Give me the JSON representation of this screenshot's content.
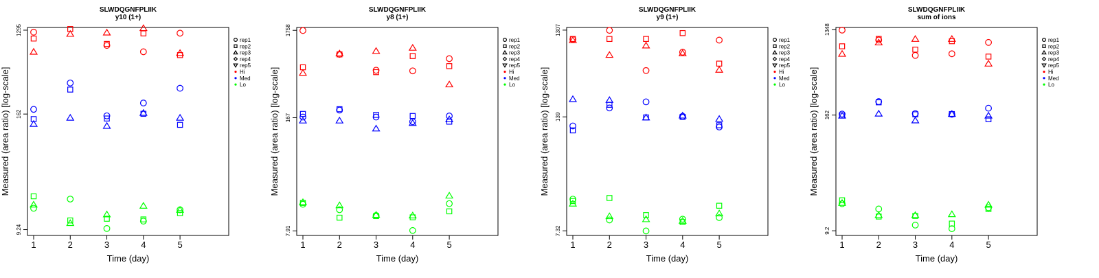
{
  "chart_data": [
    {
      "type": "scatter",
      "title": "SLWDQGNFPLIIK",
      "subtitle": "y10 (1+)",
      "xlabel": "Time (day)",
      "ylabel": "Measured (area ratio) [log-scale]",
      "x_ticks": [
        "1",
        "2",
        "3",
        "4",
        "5"
      ],
      "y_scale": "log",
      "y_ticks": [
        {
          "value": 9.24,
          "label": "9.24"
        },
        {
          "value": 162,
          "label": "162"
        },
        {
          "value": 1295,
          "label": "1295"
        }
      ],
      "ylim": [
        8.0,
        1385
      ],
      "series": [
        {
          "group": "Hi",
          "rep": "rep1",
          "color": "#ff0000",
          "x": [
            1,
            2,
            3,
            4,
            5
          ],
          "y": [
            1233,
            null,
            887,
            758,
            1202
          ]
        },
        {
          "group": "Hi",
          "rep": "rep2",
          "color": "#ff0000",
          "x": [
            1,
            2,
            3,
            4,
            5
          ],
          "y": [
            1052,
            1332,
            920,
            1195,
            698
          ]
        },
        {
          "group": "Hi",
          "rep": "rep3",
          "color": "#ff0000",
          "x": [
            1,
            2,
            3,
            4,
            5
          ],
          "y": [
            759,
            1183,
            1223,
            1364,
            736
          ]
        },
        {
          "group": "Med",
          "rep": "rep1",
          "color": "#0000ff",
          "x": [
            1,
            2,
            3,
            4,
            5
          ],
          "y": [
            182,
            350,
            155,
            213,
            307
          ]
        },
        {
          "group": "Med",
          "rep": "rep2",
          "color": "#0000ff",
          "x": [
            1,
            2,
            3,
            4,
            5
          ],
          "y": [
            143,
            297,
            145,
            163,
            124
          ]
        },
        {
          "group": "Med",
          "rep": "rep3",
          "color": "#0000ff",
          "x": [
            1,
            2,
            3,
            4,
            5
          ],
          "y": [
            127,
            148,
            121,
            167,
            148
          ]
        },
        {
          "group": "Lo",
          "rep": "rep1",
          "color": "#00ff00",
          "x": [
            1,
            2,
            3,
            4,
            5
          ],
          "y": [
            15.7,
            19.7,
            9.5,
            11.4,
            15.1
          ]
        },
        {
          "group": "Lo",
          "rep": "rep2",
          "color": "#00ff00",
          "x": [
            1,
            2,
            3,
            4,
            5
          ],
          "y": [
            21.1,
            11.6,
            12.1,
            11.9,
            13.9
          ]
        },
        {
          "group": "Lo",
          "rep": "rep3",
          "color": "#00ff00",
          "x": [
            1,
            2,
            3,
            4,
            5
          ],
          "y": [
            17.2,
            10.9,
            13.5,
            16.7,
            15.1
          ]
        }
      ],
      "legend": {
        "position": "right",
        "reps": [
          "rep1",
          "rep2",
          "rep3",
          "rep4",
          "rep5"
        ],
        "groups": [
          "Hi",
          "Med",
          "Lo"
        ]
      }
    },
    {
      "type": "scatter",
      "title": "SLWDQGNFPLIIK",
      "subtitle": "y8 (1+)",
      "xlabel": "Time (day)",
      "ylabel": "Measured (area ratio) [log-scale]",
      "x_ticks": [
        "1",
        "2",
        "3",
        "4",
        "5"
      ],
      "y_scale": "log",
      "y_ticks": [
        {
          "value": 7.91,
          "label": "7.91"
        },
        {
          "value": 167,
          "label": "167"
        },
        {
          "value": 1758,
          "label": "1758"
        }
      ],
      "ylim": [
        7.0,
        1900
      ],
      "series": [
        {
          "group": "Hi",
          "rep": "rep1",
          "color": "#ff0000",
          "x": [
            1,
            2,
            3,
            4,
            5
          ],
          "y": [
            1750,
            920,
            600,
            590,
            820
          ]
        },
        {
          "group": "Hi",
          "rep": "rep2",
          "color": "#ff0000",
          "x": [
            1,
            2,
            3,
            4,
            5
          ],
          "y": [
            650,
            920,
            570,
            880,
            670
          ]
        },
        {
          "group": "Hi",
          "rep": "rep3",
          "color": "#ff0000",
          "x": [
            1,
            2,
            3,
            4,
            5
          ],
          "y": [
            560,
            945,
            1010,
            1100,
            410
          ]
        },
        {
          "group": "Med",
          "rep": "rep1",
          "color": "#0000ff",
          "x": [
            1,
            2,
            3,
            4,
            5
          ],
          "y": [
            170,
            205,
            170,
            150,
            175
          ]
        },
        {
          "group": "Med",
          "rep": "rep2",
          "color": "#0000ff",
          "x": [
            1,
            2,
            3,
            4,
            5
          ],
          "y": [
            185,
            210,
            180,
            175,
            150
          ]
        },
        {
          "group": "Med",
          "rep": "rep3",
          "color": "#0000ff",
          "x": [
            1,
            2,
            3,
            4,
            5
          ],
          "y": [
            155,
            155,
            125,
            145,
            160
          ]
        },
        {
          "group": "Lo",
          "rep": "rep1",
          "color": "#00ff00",
          "x": [
            1,
            2,
            3,
            4,
            5
          ],
          "y": [
            16.2,
            14.0,
            12.0,
            8.0,
            16.5
          ]
        },
        {
          "group": "Lo",
          "rep": "rep2",
          "color": "#00ff00",
          "x": [
            1,
            2,
            3,
            4,
            5
          ],
          "y": [
            16.8,
            11.3,
            11.8,
            11.4,
            13.4
          ]
        },
        {
          "group": "Lo",
          "rep": "rep3",
          "color": "#00ff00",
          "x": [
            1,
            2,
            3,
            4,
            5
          ],
          "y": [
            17.2,
            15.8,
            12.2,
            12.0,
            20.5
          ]
        }
      ],
      "legend": {
        "position": "right",
        "reps": [
          "rep1",
          "rep2",
          "rep3",
          "rep4",
          "rep5"
        ],
        "groups": [
          "Hi",
          "Med",
          "Lo"
        ]
      }
    },
    {
      "type": "scatter",
      "title": "SLWDQGNFPLIIK",
      "subtitle": "y9 (1+)",
      "xlabel": "Time (day)",
      "ylabel": "Measured (area ratio) [log-scale]",
      "x_ticks": [
        "1",
        "2",
        "3",
        "4",
        "5"
      ],
      "y_scale": "log",
      "y_ticks": [
        {
          "value": 7.32,
          "label": "7.32"
        },
        {
          "value": 139,
          "label": "139"
        },
        {
          "value": 1307,
          "label": "1307"
        }
      ],
      "ylim": [
        6.5,
        1400
      ],
      "series": [
        {
          "group": "Hi",
          "rep": "rep1",
          "color": "#ff0000",
          "x": [
            1,
            2,
            3,
            4,
            5
          ],
          "y": [
            1030,
            1300,
            460,
            740,
            1010
          ]
        },
        {
          "group": "Hi",
          "rep": "rep2",
          "color": "#ff0000",
          "x": [
            1,
            2,
            3,
            4,
            5
          ],
          "y": [
            1040,
            1040,
            1040,
            1210,
            550
          ]
        },
        {
          "group": "Hi",
          "rep": "rep3",
          "color": "#ff0000",
          "x": [
            1,
            2,
            3,
            4,
            5
          ],
          "y": [
            1010,
            690,
            880,
            720,
            470
          ]
        },
        {
          "group": "Med",
          "rep": "rep1",
          "color": "#0000ff",
          "x": [
            1,
            2,
            3,
            4,
            5
          ],
          "y": [
            110,
            175,
            205,
            141,
            107
          ]
        },
        {
          "group": "Med",
          "rep": "rep2",
          "color": "#0000ff",
          "x": [
            1,
            2,
            3,
            4,
            5
          ],
          "y": [
            98,
            190,
            137,
            139,
            112
          ]
        },
        {
          "group": "Med",
          "rep": "rep3",
          "color": "#0000ff",
          "x": [
            1,
            2,
            3,
            4,
            5
          ],
          "y": [
            220,
            215,
            137,
            144,
            132
          ]
        },
        {
          "group": "Lo",
          "rep": "rep1",
          "color": "#00ff00",
          "x": [
            1,
            2,
            3,
            4,
            5
          ],
          "y": [
            16.6,
            9.7,
            7.3,
            9.9,
            10.3
          ]
        },
        {
          "group": "Lo",
          "rep": "rep2",
          "color": "#00ff00",
          "x": [
            1,
            2,
            3,
            4,
            5
          ],
          "y": [
            15.8,
            17.1,
            11.0,
            9.2,
            14.0
          ]
        },
        {
          "group": "Lo",
          "rep": "rep3",
          "color": "#00ff00",
          "x": [
            1,
            2,
            3,
            4,
            5
          ],
          "y": [
            14.8,
            10.7,
            9.9,
            9.5,
            11.5
          ]
        }
      ],
      "legend": {
        "position": "right",
        "reps": [
          "rep1",
          "rep2",
          "rep3",
          "rep4",
          "rep5"
        ],
        "groups": [
          "Hi",
          "Med",
          "Lo"
        ]
      }
    },
    {
      "type": "scatter",
      "title": "SLWDQGNFPLIIK",
      "subtitle": "sum of ions",
      "xlabel": "Time (day)",
      "ylabel": "Measured (area ratio) [log-scale]",
      "x_ticks": [
        "1",
        "2",
        "3",
        "4",
        "5"
      ],
      "y_scale": "log",
      "y_ticks": [
        {
          "value": 9.2,
          "label": "9.2"
        },
        {
          "value": 162,
          "label": "162"
        },
        {
          "value": 1348,
          "label": "1348"
        }
      ],
      "ylim": [
        8.2,
        1420
      ],
      "series": [
        {
          "group": "Hi",
          "rep": "rep1",
          "color": "#ff0000",
          "x": [
            1,
            2,
            3,
            4,
            5
          ],
          "y": [
            1330,
            1040,
            710,
            740,
            980
          ]
        },
        {
          "group": "Hi",
          "rep": "rep2",
          "color": "#ff0000",
          "x": [
            1,
            2,
            3,
            4,
            5
          ],
          "y": [
            890,
            1070,
            820,
            1010,
            690
          ]
        },
        {
          "group": "Hi",
          "rep": "rep3",
          "color": "#ff0000",
          "x": [
            1,
            2,
            3,
            4,
            5
          ],
          "y": [
            740,
            980,
            1070,
            1070,
            580
          ]
        },
        {
          "group": "Med",
          "rep": "rep1",
          "color": "#0000ff",
          "x": [
            1,
            2,
            3,
            4,
            5
          ],
          "y": [
            166,
            226,
            168,
            165,
            192
          ]
        },
        {
          "group": "Med",
          "rep": "rep2",
          "color": "#0000ff",
          "x": [
            1,
            2,
            3,
            4,
            5
          ],
          "y": [
            160,
            222,
            165,
            166,
            146
          ]
        },
        {
          "group": "Med",
          "rep": "rep3",
          "color": "#0000ff",
          "x": [
            1,
            2,
            3,
            4,
            5
          ],
          "y": [
            160,
            168,
            142,
            167,
            160
          ]
        },
        {
          "group": "Lo",
          "rep": "rep1",
          "color": "#00ff00",
          "x": [
            1,
            2,
            3,
            4,
            5
          ],
          "y": [
            18.0,
            15.8,
            10.6,
            9.7,
            16.3
          ]
        },
        {
          "group": "Lo",
          "rep": "rep2",
          "color": "#00ff00",
          "x": [
            1,
            2,
            3,
            4,
            5
          ],
          "y": [
            19.6,
            13.1,
            13.3,
            11.0,
            15.8
          ]
        },
        {
          "group": "Lo",
          "rep": "rep3",
          "color": "#00ff00",
          "x": [
            1,
            2,
            3,
            4,
            5
          ],
          "y": [
            18.4,
            13.6,
            13.6,
            13.9,
            17.6
          ]
        }
      ],
      "legend": {
        "position": "right",
        "reps": [
          "rep1",
          "rep2",
          "rep3",
          "rep4",
          "rep5"
        ],
        "groups": [
          "Hi",
          "Med",
          "Lo"
        ]
      }
    }
  ]
}
